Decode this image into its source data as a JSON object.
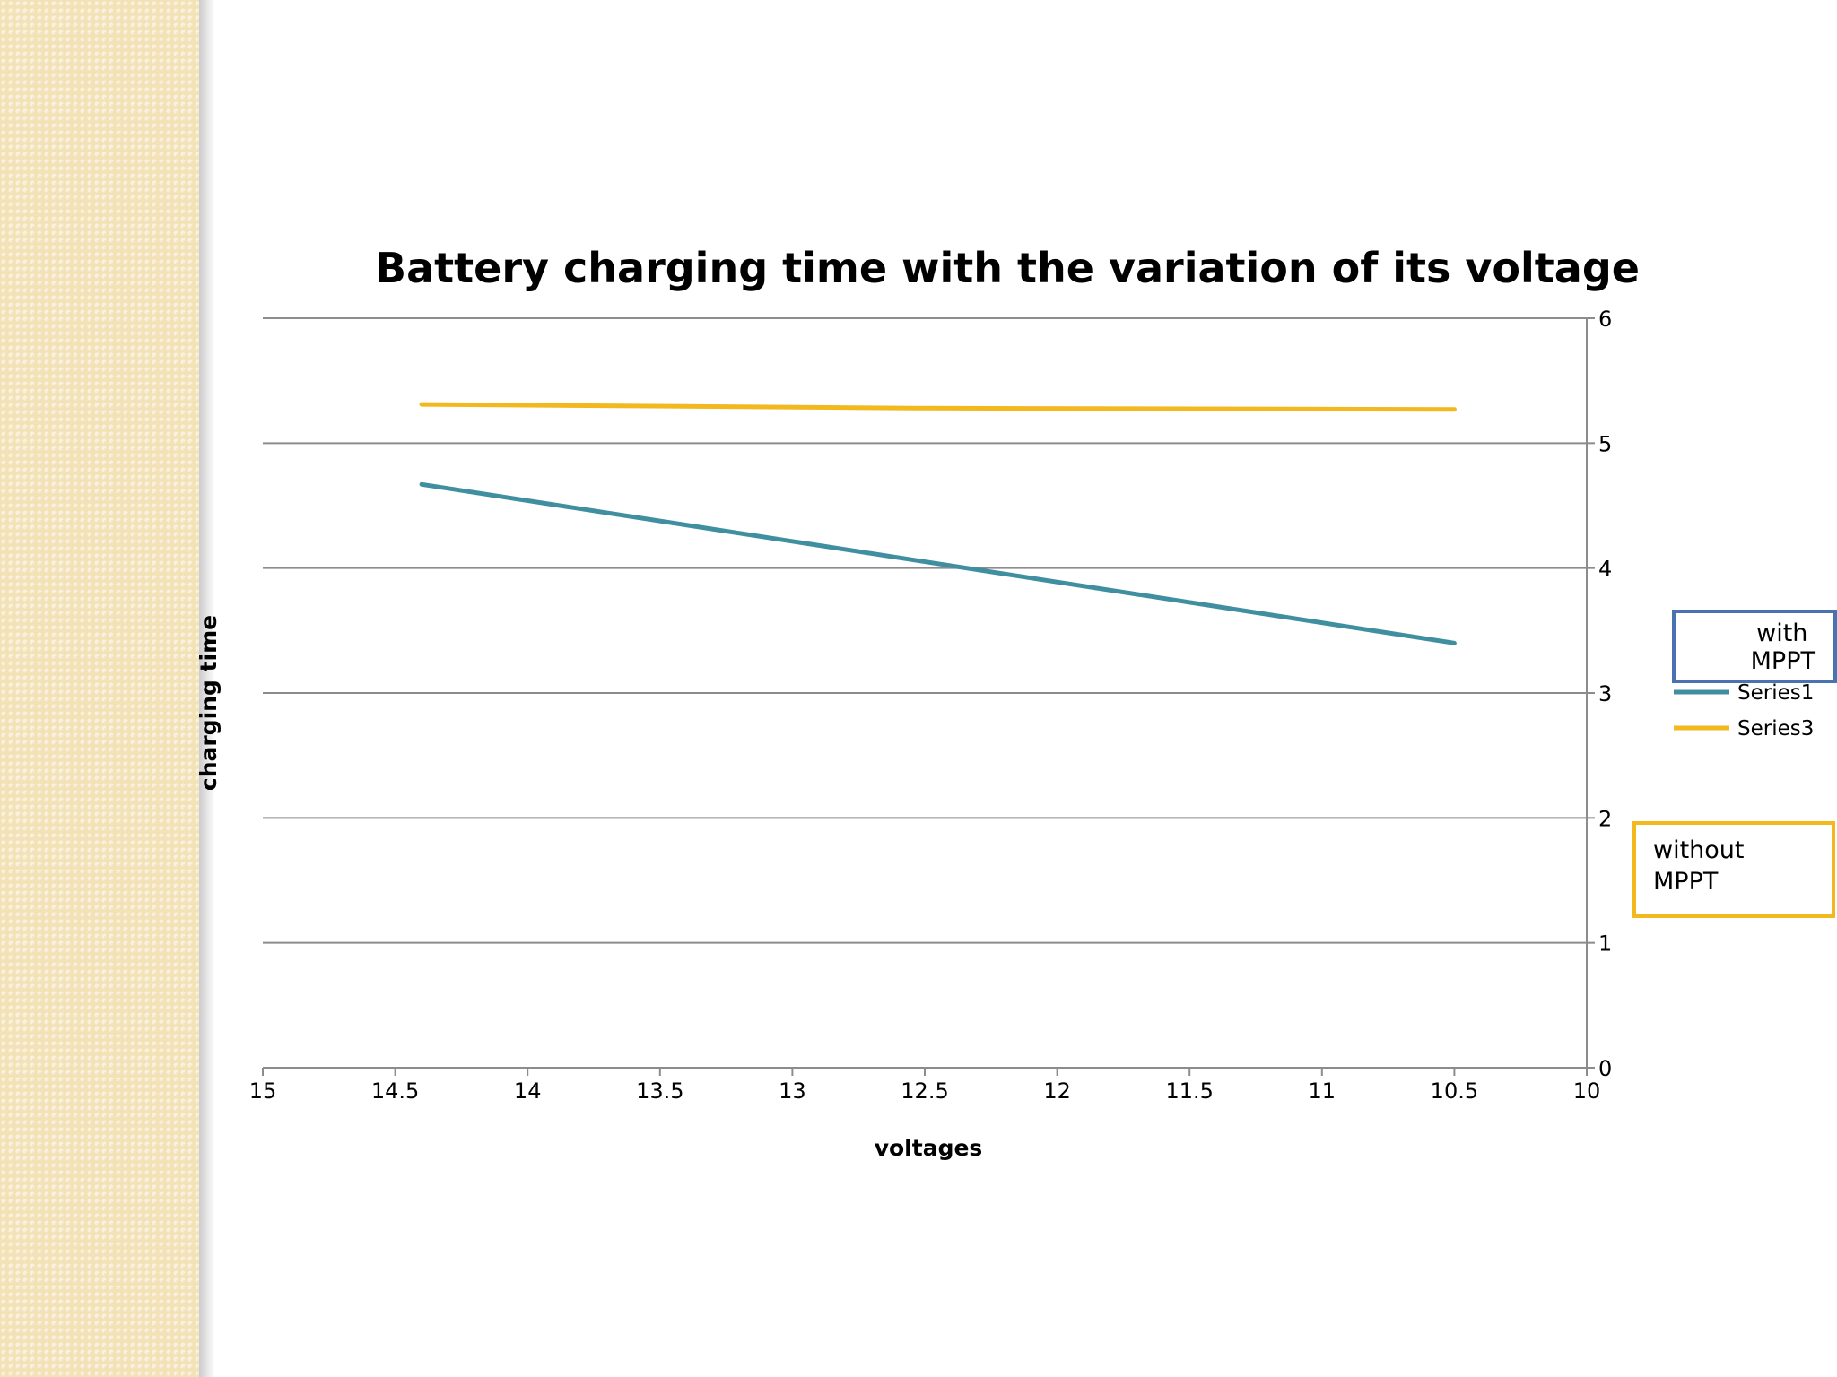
{
  "chart_data": {
    "type": "line",
    "title": "Battery charging time with the variation of its voltage",
    "xlabel": "voltages",
    "ylabel": "charging time",
    "xlim": [
      15,
      10
    ],
    "x_reversed": true,
    "ylim": [
      0,
      6
    ],
    "x_ticks": [
      "15",
      "14.5",
      "14",
      "13.5",
      "13",
      "12.5",
      "12",
      "11.5",
      "11",
      "10.5",
      "10"
    ],
    "y_ticks": [
      "0",
      "1",
      "2",
      "3",
      "4",
      "5",
      "6"
    ],
    "y_axis_side": "right",
    "grid": true,
    "legend_placement": "right",
    "series": [
      {
        "name": "Series1",
        "color": "#3f8fa0",
        "x": [
          14.4,
          10.5
        ],
        "y": [
          4.67,
          3.4
        ]
      },
      {
        "name": "Series3",
        "color": "#f2b81e",
        "x": [
          14.4,
          12.5,
          10.5
        ],
        "y": [
          5.31,
          5.28,
          5.27
        ]
      }
    ],
    "annotations": [
      {
        "text": "with MPPT",
        "border_color": "#4a72b0"
      },
      {
        "text": "without MPPT",
        "border_color": "#f2b81e"
      }
    ]
  }
}
